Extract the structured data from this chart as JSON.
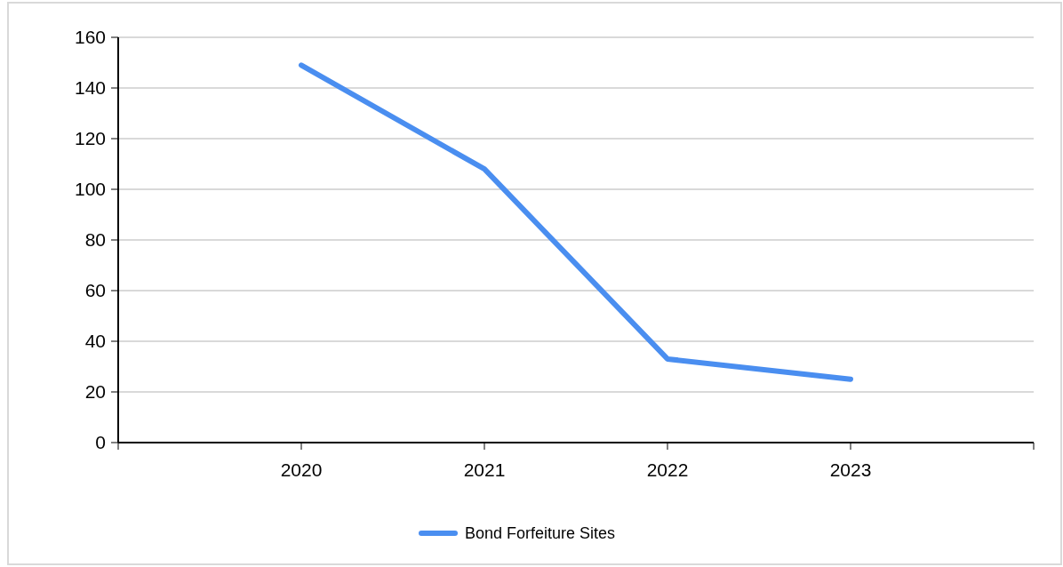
{
  "chart_data": {
    "type": "line",
    "categories": [
      "2020",
      "2021",
      "2022",
      "2023"
    ],
    "series": [
      {
        "name": "Bond Forfeiture Sites",
        "color": "#4a8ef0",
        "values": [
          149,
          108,
          33,
          25
        ]
      }
    ],
    "ylim": [
      0,
      160
    ],
    "yticks": [
      0,
      20,
      40,
      60,
      80,
      100,
      120,
      140,
      160
    ],
    "grid": "y",
    "legend": "bottom",
    "marker": "none",
    "line_style": "solid"
  }
}
